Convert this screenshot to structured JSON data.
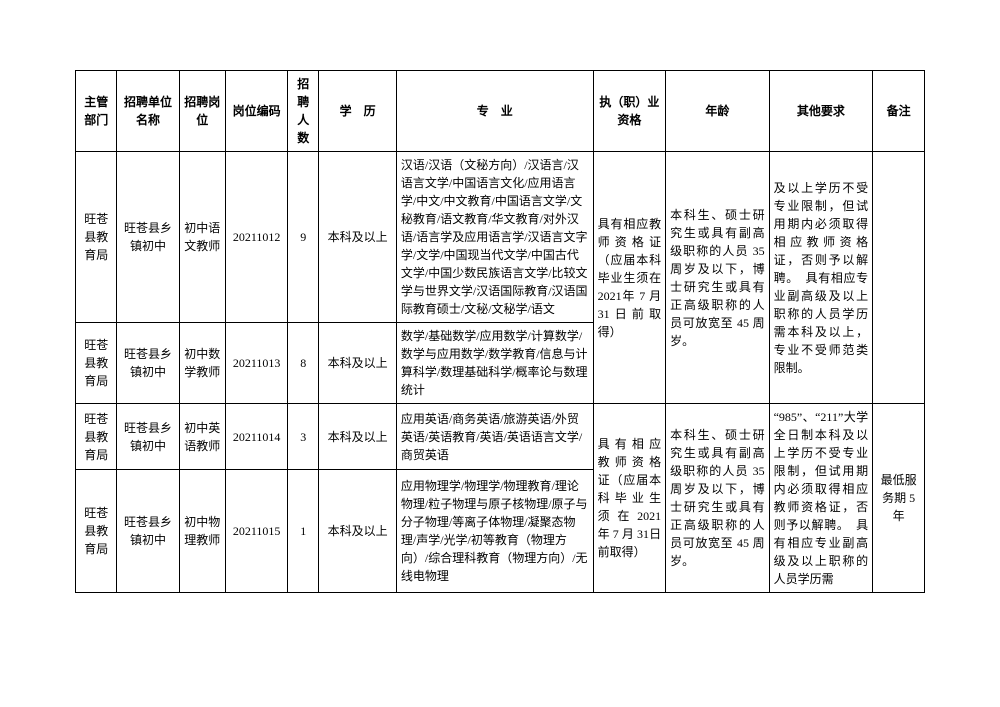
{
  "headers": {
    "dept": "主管部门",
    "unit": "招聘单位名称",
    "post": "招聘岗位",
    "code": "岗位编码",
    "count": "招聘人数",
    "edu": "学　历",
    "major": "专　业",
    "qual": "执（职）业资格",
    "age": "年龄",
    "other": "其他要求",
    "note": "备注"
  },
  "rows": [
    {
      "dept": "旺苍县教育局",
      "unit": "旺苍县乡镇初中",
      "post": "初中语文教师",
      "code": "20211012",
      "count": "9",
      "edu": "本科及以上",
      "major": "汉语/汉语（文秘方向）/汉语言/汉语言文学/中国语言文化/应用语言学/中文/中文教育/中国语言文学/文秘教育/语文教育/华文教育/对外汉语/语言学及应用语言学/汉语言文字学/文学/中国现当代文学/中国古代文学/中国少数民族语言文学/比较文学与世界文学/汉语国际教育/汉语国际教育硕士/文秘/文秘学/语文"
    },
    {
      "dept": "旺苍县教育局",
      "unit": "旺苍县乡镇初中",
      "post": "初中数学教师",
      "code": "20211013",
      "count": "8",
      "edu": "本科及以上",
      "major": "数学/基础数学/应用数学/计算数学/数学与应用数学/数学教育/信息与计算科学/数理基础科学/概率论与数理统计"
    },
    {
      "dept": "旺苍县教育局",
      "unit": "旺苍县乡镇初中",
      "post": "初中英语教师",
      "code": "20211014",
      "count": "3",
      "edu": "本科及以上",
      "major": "应用英语/商务英语/旅游英语/外贸英语/英语教育/英语/英语语言文学/商贸英语"
    },
    {
      "dept": "旺苍县教育局",
      "unit": "旺苍县乡镇初中",
      "post": "初中物理教师",
      "code": "20211015",
      "count": "1",
      "edu": "本科及以上",
      "major": "应用物理学/物理学/物理教育/理论物理/粒子物理与原子核物理/原子与分子物理/等离子体物理/凝聚态物理/声学/光学/初等教育（物理方向）/综合理科教育（物理方向）/无线电物理"
    }
  ],
  "merged": {
    "qual_top": "具有相应教师资格证（应届本科毕业生须在 2021年 7 月 31日前取得）",
    "age_top": "本科生、硕士研究生或具有副高级职称的人员 35 周岁及以下，博士研究生或具有正高级职称的人员可放宽至 45 周岁。",
    "other_top": "及以上学历不受专业限制，但试用期内必须取得相应教师资格证，否则予以解聘。　具有相应专业副高级及以上职称的人员学历需本科及以上，专业不受师范类限制。",
    "qual_bottom": "具 有 相 应教 师 资 格证（应届本科 毕 业 生须 在 2021年 7 月 31日前取得）",
    "age_bottom": "本科生、硕士研究生或具有副高级职称的人员 35 周岁及以下，博士研究生或具有正高级职称的人员可放宽至 45 周岁。",
    "other_bottom": "“985”、“211”大学全日制本科及以上学历不受专业限制，但试用期内必须取得相应教师资格证，否则予以解聘。　具有相应专业副高级及以上职称的人员学历需",
    "note_bottom": "最低服务期 5 年"
  }
}
